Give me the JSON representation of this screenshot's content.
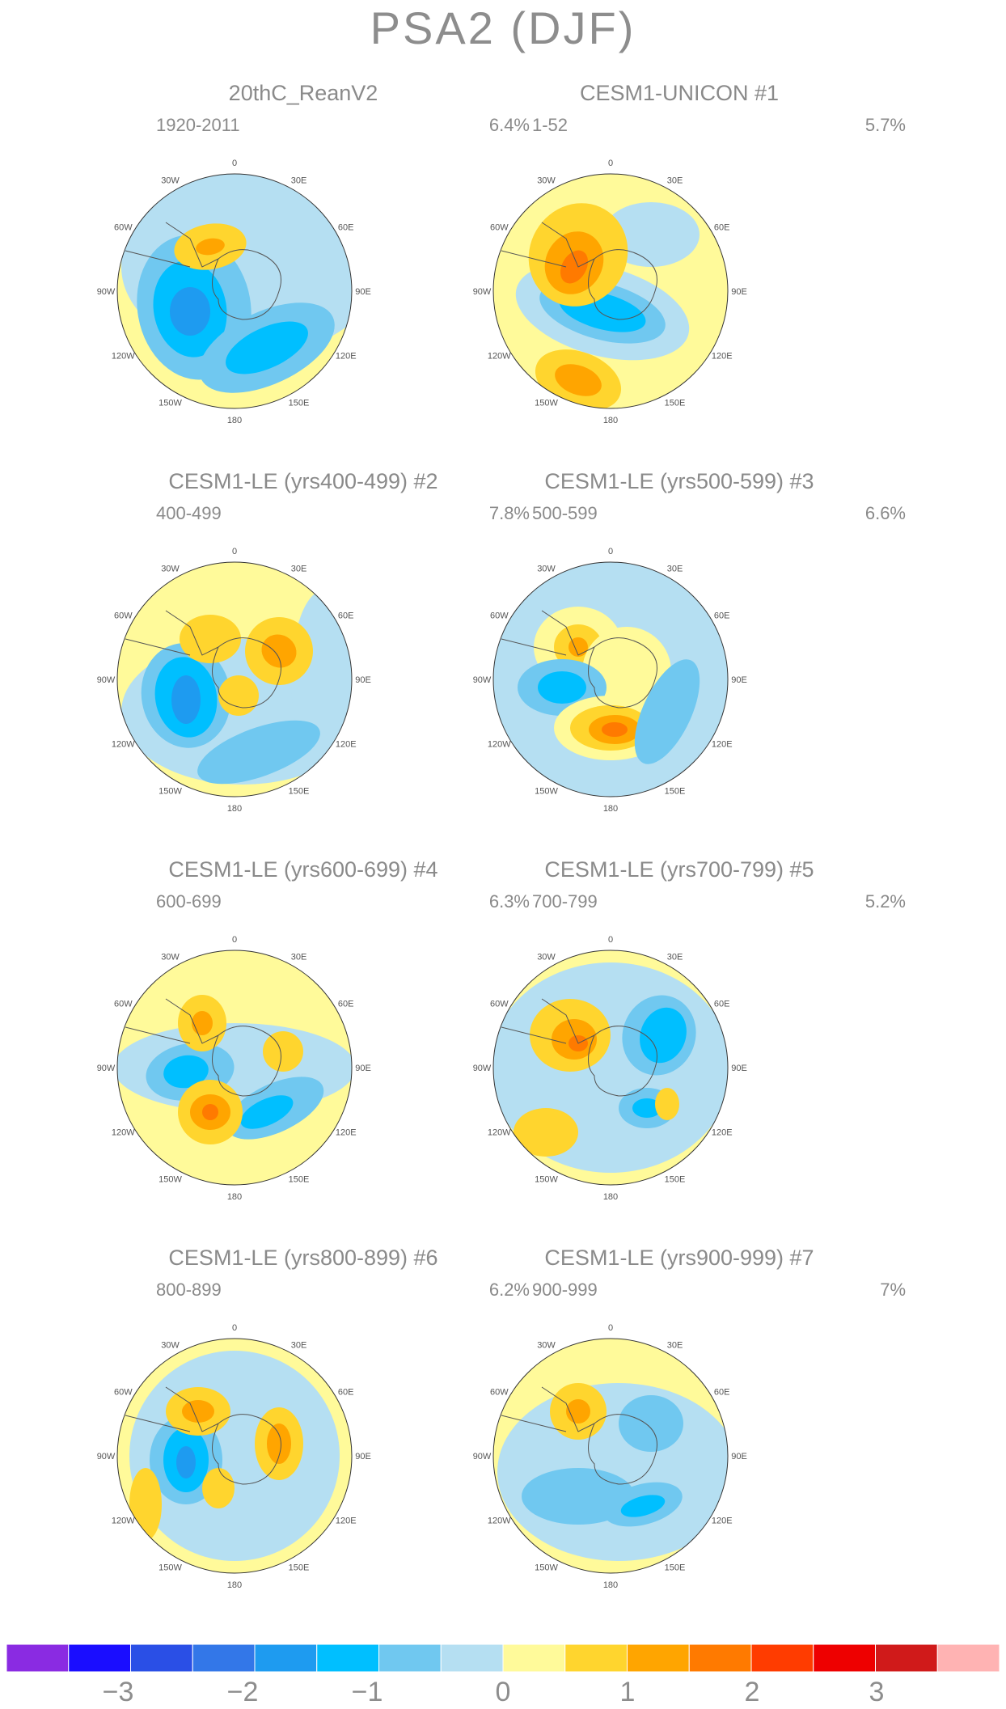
{
  "title": "PSA2 (DJF)",
  "panels": [
    {
      "title": "20thC_ReanV2",
      "years": "1920-2011",
      "pct": "6.4%"
    },
    {
      "title": "CESM1-UNICON       #1",
      "years": "1-52",
      "pct": "5.7%"
    },
    {
      "title": "CESM1-LE (yrs400-499) #2",
      "years": "400-499",
      "pct": "7.8%"
    },
    {
      "title": "CESM1-LE (yrs500-599) #3",
      "years": "500-599",
      "pct": "6.6%"
    },
    {
      "title": "CESM1-LE (yrs600-699) #4",
      "years": "600-699",
      "pct": "6.3%"
    },
    {
      "title": "CESM1-LE (yrs700-799) #5",
      "years": "700-799",
      "pct": "5.2%"
    },
    {
      "title": "CESM1-LE (yrs800-899) #6",
      "years": "800-899",
      "pct": "6.2%"
    },
    {
      "title": "CESM1-LE (yrs900-999) #7",
      "years": "900-999",
      "pct": "7%"
    }
  ],
  "longitude_labels": [
    "0",
    "30E",
    "60E",
    "90E",
    "120E",
    "150E",
    "180",
    "150W",
    "120W",
    "90W",
    "60W",
    "30W"
  ],
  "colorbar": {
    "colors": [
      "#8a2be2",
      "#1a0dff",
      "#2a4fe6",
      "#3377e8",
      "#1e9bf0",
      "#00bfff",
      "#70c8f0",
      "#b5dff2",
      "#fffa9a",
      "#ffd52e",
      "#ffa500",
      "#ff7a00",
      "#ff3c00",
      "#ee0000",
      "#d01a1a",
      "#ffb3b3"
    ],
    "labels": [
      "−3",
      "−2",
      "−1",
      "0",
      "1",
      "2",
      "3"
    ]
  }
}
